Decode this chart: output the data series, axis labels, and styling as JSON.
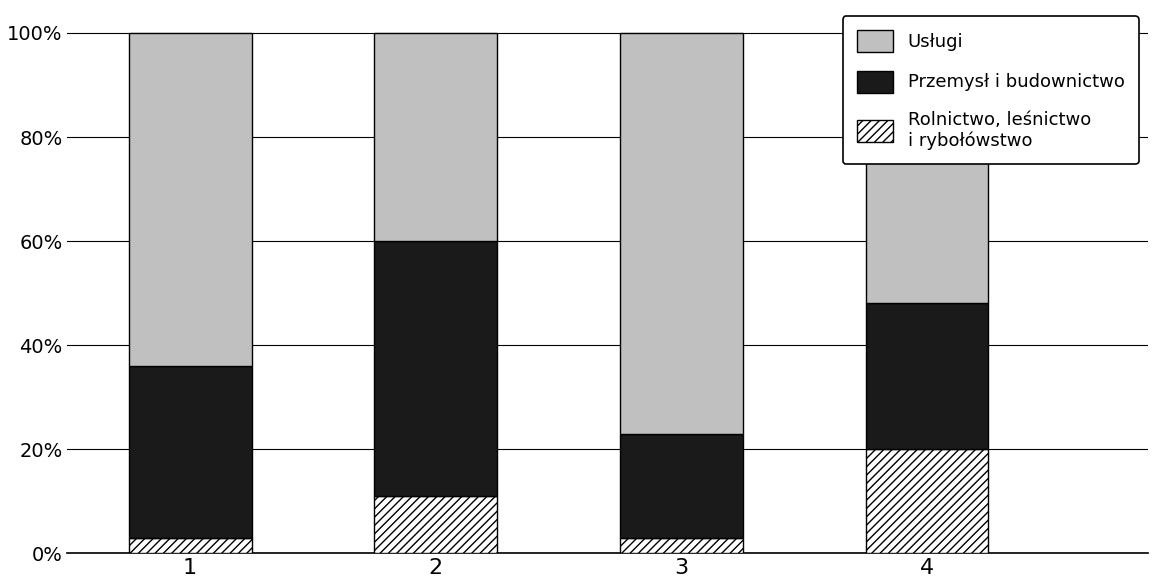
{
  "categories": [
    "1",
    "2",
    "3",
    "4"
  ],
  "agriculture": [
    3,
    11,
    3,
    20
  ],
  "industry": [
    33,
    49,
    20,
    28
  ],
  "services": [
    64,
    40,
    77,
    52
  ],
  "color_services": "#c0c0c0",
  "color_industry": "#1a1a1a",
  "color_agriculture_face": "#ffffff",
  "edge_color": "#000000",
  "legend_labels": [
    "Usługi",
    "Przemysł i budownictwo",
    "Rolnictwo, leśnictwo\ni rybołówstwo"
  ],
  "yticks": [
    0,
    20,
    40,
    60,
    80,
    100
  ],
  "ytick_labels": [
    "0%",
    "20%",
    "40%",
    "60%",
    "80%",
    "100%"
  ],
  "bar_width": 0.5,
  "background_color": "#ffffff"
}
